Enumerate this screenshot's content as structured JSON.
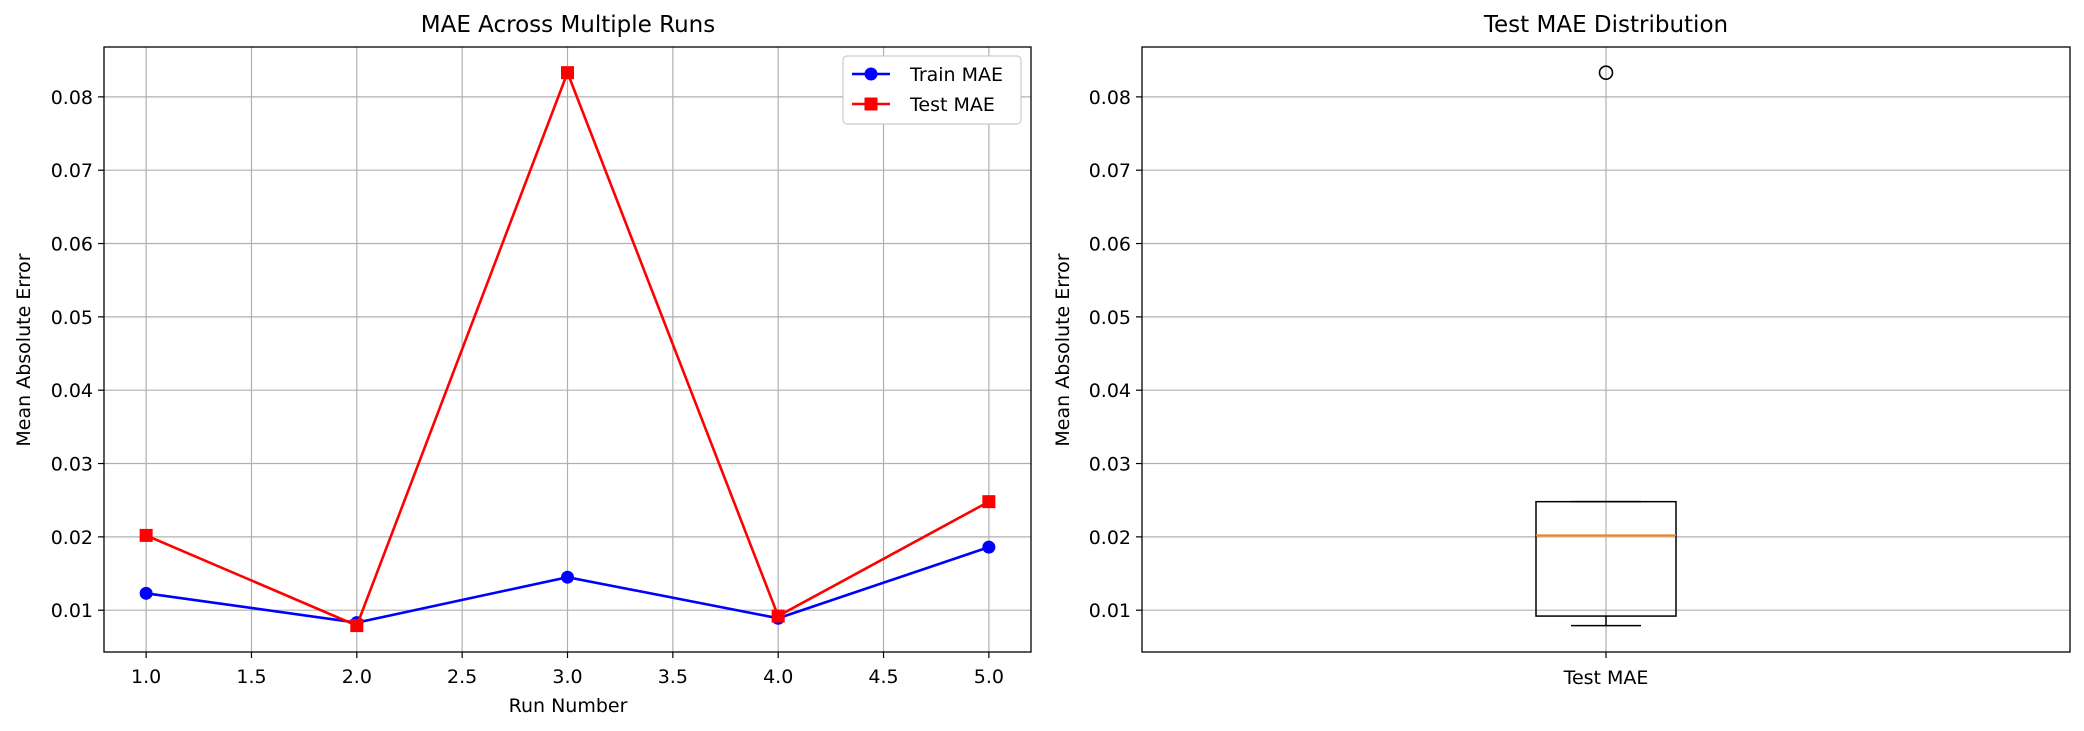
{
  "chart_data": [
    {
      "type": "line",
      "title": "MAE Across Multiple Runs",
      "xlabel": "Run Number",
      "ylabel": "Mean Absolute Error",
      "x": [
        1.0,
        2.0,
        3.0,
        4.0,
        5.0
      ],
      "xlim": [
        0.8,
        5.2
      ],
      "ylim": [
        0.0043,
        0.0868
      ],
      "xticks": [
        "1.0",
        "1.5",
        "2.0",
        "2.5",
        "3.0",
        "3.5",
        "4.0",
        "4.5",
        "5.0"
      ],
      "yticks": [
        "0.01",
        "0.02",
        "0.03",
        "0.04",
        "0.05",
        "0.06",
        "0.07",
        "0.08"
      ],
      "grid": true,
      "legend_position": "top-right",
      "series": [
        {
          "name": "Train MAE",
          "color": "#0000ff",
          "marker": "circle",
          "values": [
            0.0123,
            0.0083,
            0.0145,
            0.0089,
            0.0186
          ]
        },
        {
          "name": "Test MAE",
          "color": "#ff0000",
          "marker": "square",
          "values": [
            0.0202,
            0.0079,
            0.0833,
            0.0092,
            0.0248
          ]
        }
      ]
    },
    {
      "type": "box",
      "title": "Test MAE Distribution",
      "ylabel": "Mean Absolute Error",
      "categories": [
        "Test MAE"
      ],
      "ylim": [
        0.0043,
        0.0868
      ],
      "yticks": [
        "0.01",
        "0.02",
        "0.03",
        "0.04",
        "0.05",
        "0.06",
        "0.07",
        "0.08"
      ],
      "grid": true,
      "box": {
        "whisker_low": 0.0079,
        "q1": 0.0092,
        "median": 0.0202,
        "q3": 0.0248,
        "whisker_high": 0.0248,
        "outliers": [
          0.0833
        ]
      },
      "median_color": "#ff7f0e"
    }
  ]
}
